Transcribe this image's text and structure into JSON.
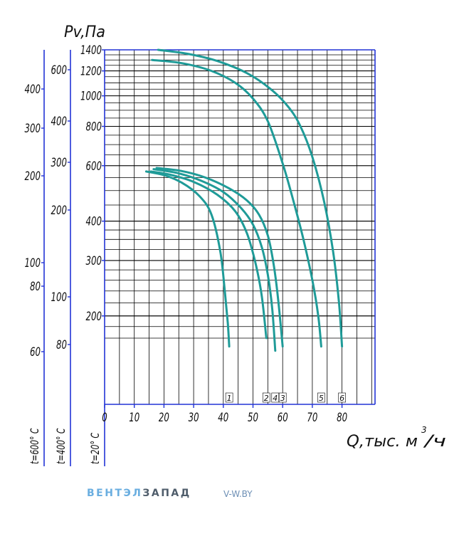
{
  "chart_data": {
    "type": "line",
    "ylabel": "Pv,Па",
    "xlabel_text": "Q,тыс. м",
    "xlabel_sup": "3",
    "xlabel_tail": "/ч",
    "xlim": [
      0,
      95
    ],
    "ylim": [
      150,
      1400
    ],
    "y_scale": "log",
    "grid": true,
    "x_ticks": [
      "0",
      "10",
      "20",
      "30",
      "40",
      "50",
      "60",
      "70",
      "80"
    ],
    "y_ticks": [
      {
        "value": 200,
        "label": "200"
      },
      {
        "value": 300,
        "label": "300"
      },
      {
        "value": 400,
        "label": "400"
      },
      {
        "value": 600,
        "label": "600"
      },
      {
        "value": 800,
        "label": "800"
      },
      {
        "value": 1000,
        "label": "1000"
      },
      {
        "value": 1200,
        "label": "1200"
      },
      {
        "value": 1400,
        "label": "1400"
      }
    ],
    "aux_axes": [
      {
        "label": "t=20° С",
        "ticks": []
      },
      {
        "label": "t=400° С",
        "ticks": [
          "80",
          "100",
          "200",
          "300",
          "400",
          "600"
        ]
      },
      {
        "label": "t=600° С",
        "ticks": [
          "60",
          "80",
          "100",
          "200",
          "300",
          "400"
        ]
      }
    ],
    "series": [
      {
        "name": "1",
        "x": [
          14,
          20,
          26,
          32,
          36,
          39,
          40.5,
          41.5,
          42
        ],
        "y": [
          575,
          560,
          530,
          480,
          420,
          320,
          240,
          190,
          160
        ]
      },
      {
        "name": "2",
        "x": [
          15.5,
          22,
          30,
          38,
          44,
          48,
          51,
          53,
          54.5
        ],
        "y": [
          575,
          562,
          533,
          485,
          430,
          365,
          290,
          230,
          170
        ]
      },
      {
        "name": "4",
        "x": [
          16.5,
          24,
          32,
          40,
          46,
          50,
          53,
          55,
          56.5,
          57.5
        ],
        "y": [
          585,
          570,
          540,
          495,
          440,
          390,
          330,
          270,
          210,
          155
        ]
      },
      {
        "name": "3",
        "x": [
          17.5,
          26,
          34,
          42,
          48,
          52,
          55,
          57,
          58.5,
          60
        ],
        "y": [
          590,
          577,
          550,
          508,
          465,
          420,
          360,
          290,
          225,
          160
        ]
      },
      {
        "name": "5",
        "x": [
          16,
          26,
          36,
          44,
          50,
          55,
          60,
          64,
          67,
          70,
          72,
          73
        ],
        "y": [
          1300,
          1270,
          1200,
          1100,
          980,
          830,
          610,
          450,
          350,
          260,
          200,
          160
        ]
      },
      {
        "name": "6",
        "x": [
          18,
          28,
          38,
          48,
          56,
          62,
          66,
          70,
          74,
          77,
          79,
          80
        ],
        "y": [
          1400,
          1360,
          1290,
          1180,
          1050,
          920,
          800,
          640,
          460,
          320,
          220,
          160
        ]
      }
    ],
    "series_color": "#1f9b98",
    "axis_color": "#2233d6"
  },
  "brand": {
    "part1": "ВЕНТЭЛ",
    "part2": "ЗАПАД"
  },
  "site": "V-W.BY"
}
